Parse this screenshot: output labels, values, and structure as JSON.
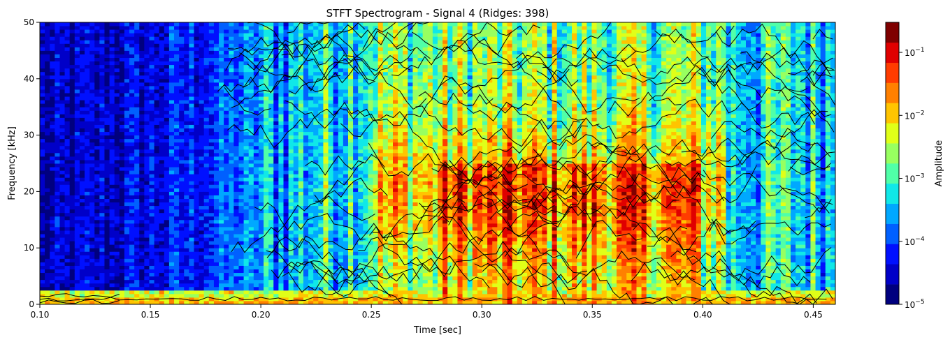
{
  "chart_data": {
    "type": "heatmap",
    "title": "STFT Spectrogram - Signal 4 (Ridges: 398)",
    "xlabel": "Time [sec]",
    "ylabel": "Frequency [kHz]",
    "xlim": [
      0.1,
      0.46
    ],
    "ylim": [
      0,
      50
    ],
    "xticks": [
      0.1,
      0.15,
      0.2,
      0.25,
      0.3,
      0.35,
      0.4,
      0.45
    ],
    "xtick_labels": [
      "0.10",
      "0.15",
      "0.20",
      "0.25",
      "0.30",
      "0.35",
      "0.40",
      "0.45"
    ],
    "yticks": [
      0,
      10,
      20,
      30,
      40,
      50
    ],
    "ytick_labels": [
      "0",
      "10",
      "20",
      "30",
      "40",
      "50"
    ],
    "colormap": "jet",
    "color_scale": "log",
    "colorbar": {
      "label": "Amplitude",
      "range": [
        1e-05,
        0.3
      ],
      "tick_labels": [
        {
          "mantissa": "10",
          "exponent": "−5",
          "value_exp": -5
        },
        {
          "mantissa": "10",
          "exponent": "−4",
          "value_exp": -4
        },
        {
          "mantissa": "10",
          "exponent": "−3",
          "value_exp": -3
        },
        {
          "mantissa": "10",
          "exponent": "−2",
          "value_exp": -2
        },
        {
          "mantissa": "10",
          "exponent": "−1",
          "value_exp": -1
        }
      ],
      "levels": 14
    },
    "ridge_count": 398,
    "ridge_color": "#000000",
    "colors": [
      "#00007f",
      "#0000c8",
      "#0010ff",
      "#0060ff",
      "#00a8ff",
      "#10e8e8",
      "#50ffa8",
      "#98ff60",
      "#e0ff18",
      "#ffc400",
      "#ff8000",
      "#ff3c00",
      "#e00000",
      "#7f0000"
    ]
  }
}
